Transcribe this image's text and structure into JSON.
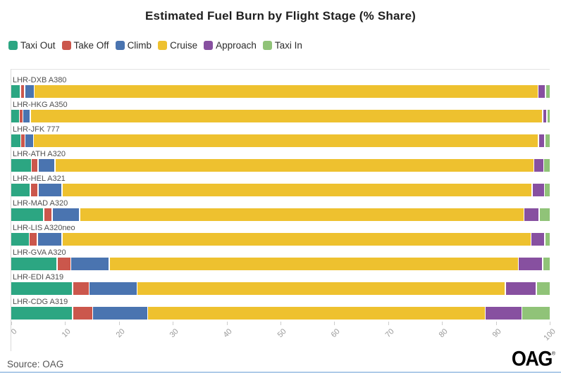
{
  "title": "Estimated Fuel Burn by Flight Stage (% Share)",
  "footer": {
    "source_note": "Source: OAG",
    "logo_text": "OAG",
    "logo_reg_mark": "®"
  },
  "colors": {
    "taxi_out": "#2CA682",
    "take_off": "#CB574C",
    "climb": "#4A74B0",
    "cruise": "#EEC12F",
    "approach": "#8750A0",
    "taxi_in": "#90C378",
    "axis_line": "#d9d9d9",
    "tick_label": "#9a9a9a",
    "row_label": "#4f4f4f",
    "bottom_accent_line": "#aecbe8"
  },
  "chart_data": {
    "type": "bar",
    "orientation": "horizontal",
    "stacked": true,
    "unit": "%",
    "title": "Estimated Fuel Burn by Flight Stage (% Share)",
    "xlabel": "",
    "ylabel": "",
    "xlim": [
      0,
      100
    ],
    "x_ticks": [
      0,
      10,
      20,
      30,
      40,
      50,
      60,
      70,
      80,
      90,
      100
    ],
    "grid": "bottom-ticks-only",
    "legend_position": "top-left",
    "categories": [
      "LHR-DXB A380",
      "LHR-HKG A350",
      "LHR-JFK 777",
      "LHR-ATH A320",
      "LHR-HEL A321",
      "LHR-MAD A320",
      "LHR-LIS A320neo",
      "LHR-GVA A320",
      "LHR-EDI A319",
      "LHR-CDG A319"
    ],
    "series": [
      {
        "name": "Taxi Out",
        "color": "#2CA682",
        "values": [
          1.6,
          1.4,
          1.7,
          3.7,
          3.5,
          6.0,
          3.3,
          8.5,
          11.4,
          11.4
        ]
      },
      {
        "name": "Take Off",
        "color": "#CB574C",
        "values": [
          0.6,
          0.5,
          0.6,
          1.0,
          1.2,
          1.4,
          1.3,
          2.4,
          2.9,
          3.6
        ]
      },
      {
        "name": "Climb",
        "color": "#4A74B0",
        "values": [
          1.6,
          1.2,
          1.4,
          3.0,
          4.3,
          4.9,
          4.4,
          7.0,
          8.8,
          10.1
        ]
      },
      {
        "name": "Cruise",
        "color": "#EEC12F",
        "values": [
          94.3,
          95.9,
          94.5,
          89.6,
          88.0,
          83.2,
          87.8,
          76.5,
          68.9,
          63.1
        ]
      },
      {
        "name": "Approach",
        "color": "#8750A0",
        "values": [
          1.2,
          0.6,
          1.0,
          1.7,
          2.1,
          2.6,
          2.4,
          4.4,
          5.6,
          6.7
        ]
      },
      {
        "name": "Taxi In",
        "color": "#90C378",
        "values": [
          0.7,
          0.4,
          0.8,
          1.0,
          0.9,
          1.9,
          0.8,
          1.2,
          2.4,
          5.1
        ]
      }
    ]
  }
}
